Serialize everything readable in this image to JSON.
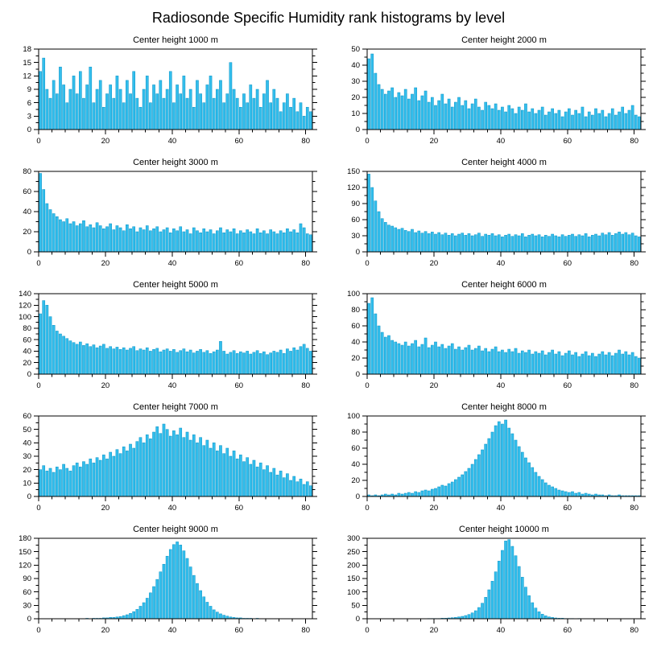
{
  "page": {
    "title": "Radiosonde Specific Humidity rank histograms by level"
  },
  "style": {
    "bar_color": "#33BEEC",
    "bar_edge": "#0D93C6",
    "axis_color": "#000000",
    "text_color": "#000000"
  },
  "chart_data": [
    {
      "type": "bar",
      "title": "Center height 1000 m",
      "xlim": [
        0,
        82
      ],
      "xticks": [
        0,
        20,
        40,
        60,
        80
      ],
      "ylim": [
        0,
        18
      ],
      "ystep": 3,
      "values": [
        13,
        16,
        9,
        7,
        11,
        8,
        14,
        10,
        6,
        9,
        12,
        8,
        13,
        7,
        10,
        14,
        6,
        9,
        11,
        5,
        8,
        10,
        7,
        12,
        9,
        6,
        11,
        8,
        13,
        7,
        5,
        9,
        12,
        6,
        10,
        8,
        11,
        7,
        9,
        13,
        6,
        10,
        8,
        12,
        7,
        9,
        5,
        11,
        8,
        6,
        10,
        12,
        7,
        9,
        11,
        6,
        8,
        15,
        9,
        7,
        5,
        8,
        6,
        10,
        7,
        9,
        5,
        8,
        11,
        6,
        9,
        7,
        4,
        6,
        8,
        5,
        7,
        4,
        6,
        3,
        5,
        4
      ]
    },
    {
      "type": "bar",
      "title": "Center height 2000 m",
      "xlim": [
        0,
        82
      ],
      "xticks": [
        0,
        20,
        40,
        60,
        80
      ],
      "ylim": [
        0,
        50
      ],
      "ystep": 10,
      "values": [
        44,
        47,
        35,
        28,
        25,
        22,
        24,
        26,
        20,
        23,
        21,
        25,
        19,
        22,
        26,
        18,
        21,
        24,
        17,
        20,
        15,
        18,
        22,
        16,
        19,
        14,
        17,
        20,
        15,
        18,
        13,
        16,
        19,
        14,
        12,
        17,
        15,
        13,
        16,
        12,
        14,
        11,
        15,
        13,
        10,
        14,
        12,
        16,
        11,
        13,
        10,
        12,
        14,
        9,
        11,
        13,
        10,
        12,
        8,
        11,
        13,
        9,
        12,
        10,
        14,
        8,
        11,
        9,
        13,
        10,
        12,
        8,
        10,
        13,
        9,
        11,
        14,
        10,
        12,
        15,
        9,
        8
      ]
    },
    {
      "type": "bar",
      "title": "Center height 3000 m",
      "xlim": [
        0,
        82
      ],
      "xticks": [
        0,
        20,
        40,
        60,
        80
      ],
      "ylim": [
        0,
        80
      ],
      "ystep": 20,
      "values": [
        78,
        62,
        48,
        42,
        38,
        35,
        32,
        30,
        33,
        28,
        30,
        26,
        28,
        31,
        25,
        27,
        24,
        29,
        26,
        23,
        25,
        28,
        22,
        26,
        24,
        21,
        27,
        23,
        25,
        20,
        24,
        22,
        26,
        21,
        23,
        25,
        20,
        22,
        24,
        19,
        23,
        21,
        25,
        20,
        22,
        18,
        24,
        21,
        19,
        23,
        20,
        22,
        18,
        21,
        24,
        19,
        22,
        20,
        23,
        18,
        21,
        19,
        22,
        20,
        18,
        23,
        19,
        21,
        18,
        22,
        20,
        18,
        21,
        19,
        23,
        20,
        22,
        19,
        28,
        24,
        18,
        17
      ]
    },
    {
      "type": "bar",
      "title": "Center height 4000 m",
      "xlim": [
        0,
        82
      ],
      "xticks": [
        0,
        20,
        40,
        60,
        80
      ],
      "ylim": [
        0,
        150
      ],
      "ystep": 30,
      "values": [
        145,
        120,
        95,
        75,
        62,
        55,
        50,
        48,
        45,
        42,
        44,
        40,
        38,
        42,
        36,
        39,
        35,
        38,
        34,
        37,
        33,
        36,
        32,
        35,
        31,
        34,
        30,
        33,
        35,
        31,
        34,
        30,
        32,
        35,
        29,
        33,
        31,
        34,
        30,
        32,
        28,
        31,
        33,
        29,
        32,
        30,
        34,
        28,
        31,
        33,
        30,
        32,
        28,
        31,
        29,
        33,
        30,
        28,
        32,
        29,
        31,
        33,
        29,
        32,
        30,
        34,
        28,
        31,
        33,
        30,
        35,
        32,
        36,
        31,
        34,
        37,
        33,
        36,
        32,
        35,
        30,
        28
      ]
    },
    {
      "type": "bar",
      "title": "Center height 5000 m",
      "xlim": [
        0,
        82
      ],
      "xticks": [
        0,
        20,
        40,
        60,
        80
      ],
      "ylim": [
        0,
        140
      ],
      "ystep": 20,
      "values": [
        105,
        128,
        120,
        100,
        85,
        75,
        70,
        66,
        62,
        58,
        55,
        52,
        56,
        50,
        53,
        48,
        51,
        46,
        49,
        52,
        45,
        48,
        44,
        47,
        43,
        46,
        42,
        45,
        48,
        41,
        44,
        42,
        46,
        40,
        43,
        45,
        39,
        42,
        44,
        40,
        43,
        38,
        41,
        44,
        39,
        42,
        37,
        40,
        43,
        38,
        41,
        36,
        39,
        42,
        57,
        40,
        35,
        38,
        41,
        36,
        39,
        37,
        40,
        35,
        38,
        41,
        36,
        39,
        34,
        37,
        40,
        38,
        42,
        36,
        44,
        40,
        46,
        42,
        48,
        52,
        45,
        40
      ]
    },
    {
      "type": "bar",
      "title": "Center height 6000 m",
      "xlim": [
        0,
        82
      ],
      "xticks": [
        0,
        20,
        40,
        60,
        80
      ],
      "ylim": [
        0,
        100
      ],
      "ystep": 20,
      "values": [
        88,
        95,
        75,
        60,
        52,
        46,
        48,
        42,
        40,
        38,
        36,
        40,
        35,
        38,
        42,
        34,
        37,
        45,
        33,
        36,
        40,
        34,
        37,
        32,
        35,
        38,
        31,
        34,
        30,
        33,
        36,
        30,
        32,
        35,
        29,
        32,
        28,
        31,
        34,
        28,
        30,
        27,
        31,
        28,
        32,
        26,
        29,
        27,
        30,
        25,
        28,
        26,
        29,
        24,
        27,
        30,
        25,
        28,
        23,
        26,
        29,
        24,
        27,
        22,
        25,
        28,
        23,
        26,
        22,
        25,
        28,
        24,
        27,
        23,
        26,
        30,
        25,
        28,
        24,
        27,
        22,
        20
      ]
    },
    {
      "type": "bar",
      "title": "Center height 7000 m",
      "xlim": [
        0,
        82
      ],
      "xticks": [
        0,
        20,
        40,
        60,
        80
      ],
      "ylim": [
        0,
        60
      ],
      "ystep": 10,
      "values": [
        20,
        23,
        19,
        21,
        18,
        22,
        20,
        24,
        21,
        19,
        23,
        25,
        22,
        26,
        24,
        28,
        25,
        29,
        27,
        31,
        28,
        33,
        30,
        35,
        32,
        37,
        34,
        39,
        36,
        41,
        44,
        40,
        46,
        43,
        48,
        52,
        47,
        54,
        50,
        45,
        49,
        46,
        51,
        44,
        48,
        42,
        46,
        40,
        44,
        38,
        42,
        36,
        40,
        34,
        38,
        32,
        36,
        30,
        34,
        28,
        31,
        26,
        29,
        24,
        27,
        22,
        25,
        20,
        23,
        18,
        21,
        16,
        19,
        14,
        17,
        12,
        15,
        11,
        13,
        9,
        11,
        8
      ]
    },
    {
      "type": "bar",
      "title": "Center height 8000 m",
      "xlim": [
        0,
        82
      ],
      "xticks": [
        0,
        20,
        40,
        60,
        80
      ],
      "ylim": [
        0,
        100
      ],
      "ystep": 20,
      "values": [
        2,
        1,
        2,
        1,
        2,
        3,
        2,
        3,
        2,
        4,
        3,
        4,
        5,
        4,
        6,
        5,
        7,
        8,
        7,
        9,
        10,
        12,
        14,
        13,
        16,
        18,
        21,
        24,
        27,
        31,
        35,
        40,
        46,
        52,
        58,
        65,
        72,
        80,
        88,
        93,
        90,
        95,
        85,
        78,
        70,
        62,
        55,
        48,
        42,
        36,
        30,
        25,
        21,
        17,
        14,
        12,
        10,
        8,
        7,
        6,
        5,
        6,
        4,
        5,
        3,
        4,
        3,
        2,
        3,
        2,
        2,
        1,
        2,
        1,
        1,
        2,
        1,
        1,
        1,
        1,
        1,
        1
      ]
    },
    {
      "type": "bar",
      "title": "Center height 9000 m",
      "xlim": [
        0,
        82
      ],
      "xticks": [
        0,
        20,
        40,
        60,
        80
      ],
      "ylim": [
        0,
        180
      ],
      "ystep": 30,
      "values": [
        0,
        0,
        0,
        0,
        0,
        0,
        0,
        0,
        0,
        0,
        0,
        0,
        0,
        0,
        1,
        0,
        1,
        1,
        1,
        2,
        2,
        3,
        3,
        4,
        5,
        7,
        9,
        12,
        16,
        21,
        28,
        36,
        46,
        58,
        72,
        88,
        105,
        122,
        140,
        155,
        166,
        172,
        165,
        152,
        135,
        116,
        97,
        79,
        63,
        49,
        37,
        28,
        20,
        15,
        11,
        8,
        6,
        4,
        3,
        2,
        2,
        1,
        1,
        1,
        0,
        1,
        0,
        0,
        0,
        0,
        0,
        0,
        0,
        0,
        0,
        0,
        0,
        0,
        0,
        0,
        0,
        0
      ]
    },
    {
      "type": "bar",
      "title": "Center height 10000 m",
      "xlim": [
        0,
        82
      ],
      "xticks": [
        0,
        20,
        40,
        60,
        80
      ],
      "ylim": [
        0,
        300
      ],
      "ystep": 50,
      "values": [
        0,
        0,
        0,
        0,
        0,
        0,
        0,
        0,
        0,
        0,
        0,
        0,
        0,
        0,
        0,
        0,
        0,
        0,
        1,
        1,
        1,
        1,
        2,
        2,
        3,
        4,
        5,
        7,
        9,
        12,
        16,
        22,
        30,
        42,
        58,
        80,
        108,
        140,
        175,
        215,
        255,
        290,
        295,
        270,
        235,
        195,
        155,
        118,
        86,
        60,
        40,
        26,
        17,
        11,
        7,
        5,
        3,
        2,
        2,
        1,
        1,
        1,
        0,
        1,
        0,
        0,
        0,
        0,
        0,
        0,
        0,
        0,
        0,
        0,
        0,
        0,
        0,
        0,
        0,
        0,
        0,
        0
      ]
    }
  ]
}
